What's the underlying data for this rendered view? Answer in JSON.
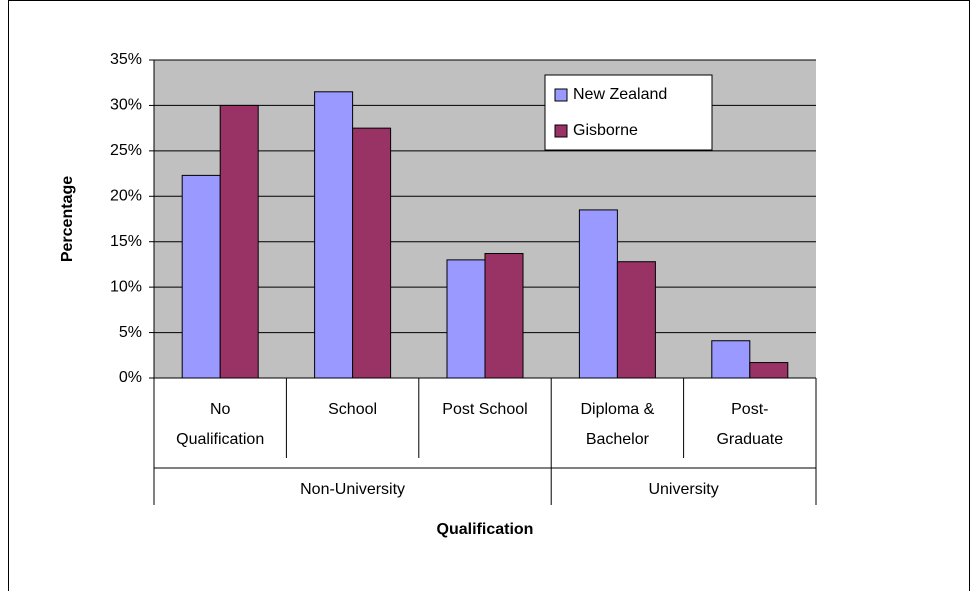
{
  "chart_data": {
    "type": "bar",
    "categories": [
      "No\nQualification",
      "School",
      "Post School",
      "Diploma &\nBachelor",
      "Post-\nGraduate"
    ],
    "groups": [
      {
        "label": "Non-University",
        "span": 3
      },
      {
        "label": "University",
        "span": 2
      }
    ],
    "series": [
      {
        "name": "New Zealand",
        "color": "#9999ff",
        "values": [
          22.3,
          31.5,
          13.0,
          18.5,
          4.1
        ]
      },
      {
        "name": "Gisborne",
        "color": "#993366",
        "values": [
          30.0,
          27.5,
          13.7,
          12.8,
          1.7
        ]
      }
    ],
    "ylim": [
      0,
      35
    ],
    "yticks": [
      {
        "value": 0,
        "label": "0%"
      },
      {
        "value": 5,
        "label": "5%"
      },
      {
        "value": 10,
        "label": "10%"
      },
      {
        "value": 15,
        "label": "15%"
      },
      {
        "value": 20,
        "label": "20%"
      },
      {
        "value": 25,
        "label": "25%"
      },
      {
        "value": 30,
        "label": "30%"
      },
      {
        "value": 35,
        "label": "35%"
      }
    ],
    "xlabel": "Qualification",
    "ylabel": "Percentage",
    "grid": true,
    "plot_background": "#c0c0c0"
  }
}
